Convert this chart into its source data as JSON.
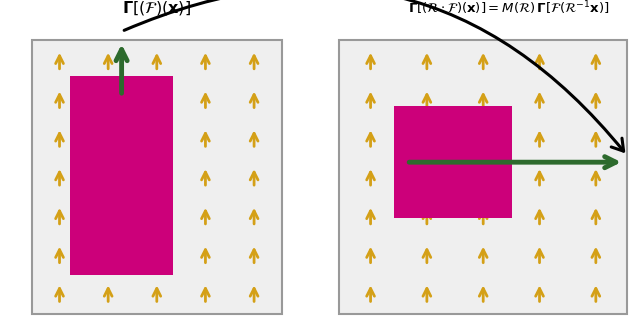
{
  "fig_width": 6.4,
  "fig_height": 3.31,
  "arrow_color": "#D4A017",
  "magenta_color": "#CC007A",
  "green_color": "#2D6A2D",
  "title_left": "$\\mathbf{\\Gamma}[(\\mathcal{F})(\\mathbf{x})]$",
  "title_right": "$\\mathbf{\\Gamma}[(\\mathcal{R}\\cdot\\mathcal{F})(\\mathbf{x})] = M(\\mathcal{R})\\,\\mathbf{\\Gamma}[\\mathcal{F}(\\mathcal{R}^{-1}\\mathbf{x})]$",
  "p1": [
    0.05,
    0.05,
    0.44,
    0.88
  ],
  "p2": [
    0.53,
    0.05,
    0.98,
    0.88
  ],
  "mag1": [
    0.11,
    0.17,
    0.27,
    0.77
  ],
  "mag2": [
    0.615,
    0.34,
    0.8,
    0.68
  ]
}
